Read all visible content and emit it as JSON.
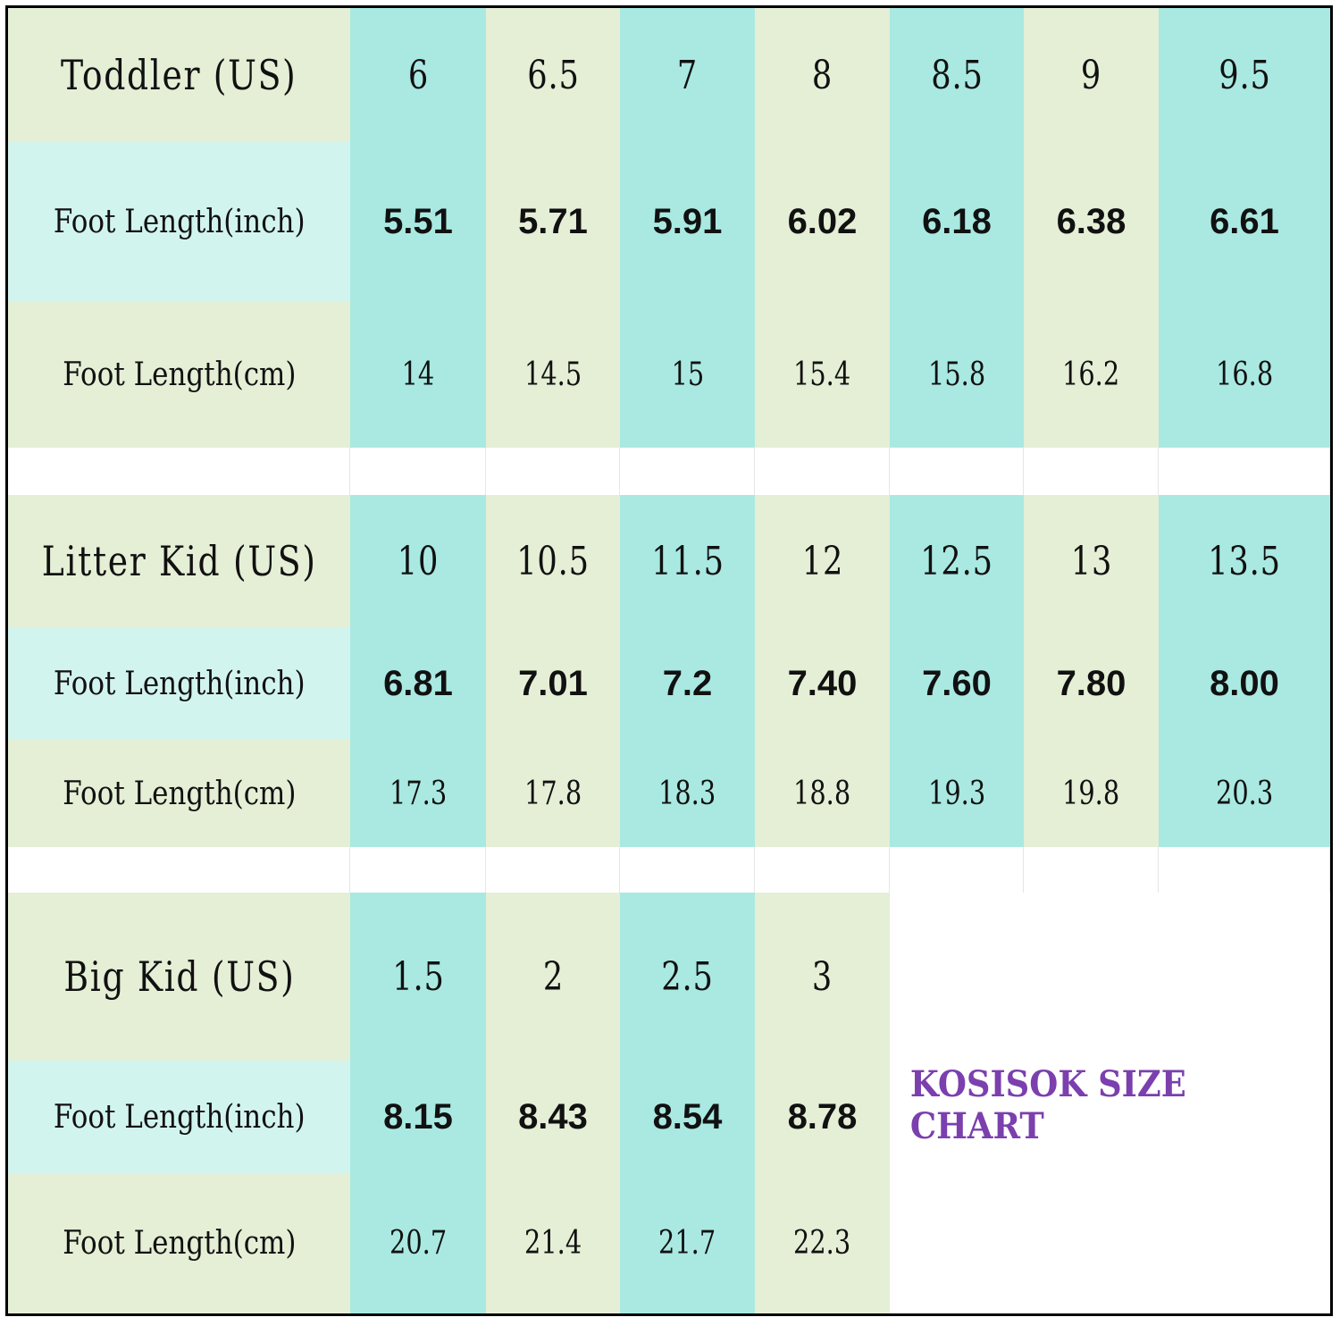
{
  "sections": [
    {
      "title": "Toddler (US)",
      "row_labels": [
        "Foot Length(inch)",
        "Foot Length(cm)"
      ],
      "sizes": [
        "6",
        "6.5",
        "7",
        "8",
        "8.5",
        "9",
        "9.5"
      ],
      "inch": [
        "5.51",
        "5.71",
        "5.91",
        "6.02",
        "6.18",
        "6.38",
        "6.61"
      ],
      "cm": [
        "14",
        "14.5",
        "15",
        "15.4",
        "15.8",
        "16.2",
        "16.8"
      ]
    },
    {
      "title": "Litter Kid (US)",
      "row_labels": [
        "Foot Length(inch)",
        "Foot Length(cm)"
      ],
      "sizes": [
        "10",
        "10.5",
        "11.5",
        "12",
        "12.5",
        "13",
        "13.5"
      ],
      "inch": [
        "6.81",
        "7.01",
        "7.2",
        "7.40",
        "7.60",
        "7.80",
        "8.00"
      ],
      "cm": [
        "17.3",
        "17.8",
        "18.3",
        "18.8",
        "19.3",
        "19.8",
        "20.3"
      ]
    },
    {
      "title": "Big Kid (US)",
      "row_labels": [
        "Foot Length(inch)",
        "Foot Length(cm)"
      ],
      "sizes": [
        "1.5",
        "2",
        "2.5",
        "3"
      ],
      "inch": [
        "8.15",
        "8.43",
        "8.54",
        "8.78"
      ],
      "cm": [
        "20.7",
        "21.4",
        "21.7",
        "22.3"
      ]
    }
  ],
  "brand_label": "KOSISOK SIZE CHART",
  "colors": {
    "green": "#e4efd6",
    "teal": "#a9e9e2",
    "pale_label": "#d2f4ef",
    "brand": "#7b3fae",
    "border": "#000000"
  }
}
